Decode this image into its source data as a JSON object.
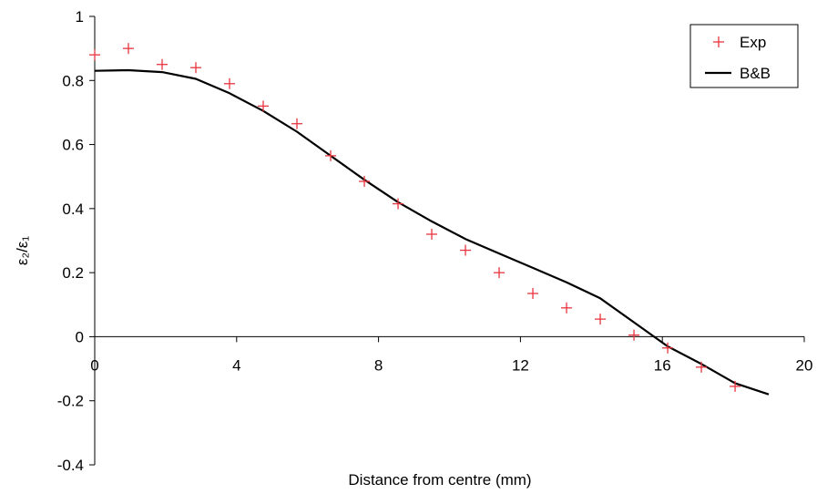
{
  "chart_data": {
    "type": "scatter",
    "title": "",
    "xlabel": "Distance from centre (mm)",
    "ylabel": "ε₂/ε₁",
    "xlim": [
      0,
      20
    ],
    "ylim": [
      -0.4,
      1
    ],
    "x_ticks": [
      0,
      4,
      8,
      12,
      16,
      20
    ],
    "y_ticks": [
      -0.4,
      -0.2,
      0,
      0.2,
      0.4,
      0.6,
      0.8,
      1
    ],
    "x_tick_labels": [
      "0",
      "4",
      "8",
      "12",
      "16",
      "20"
    ],
    "y_tick_labels": [
      "-0.4",
      "-0.2",
      "0",
      "0.2",
      "0.4",
      "0.6",
      "0.8",
      "1"
    ],
    "grid": false,
    "legend_position": "top-right",
    "series": [
      {
        "name": "Exp",
        "kind": "scatter",
        "marker": "plus",
        "color": "#e8343f",
        "x": [
          0,
          0.95,
          1.9,
          2.85,
          3.8,
          4.75,
          5.7,
          6.65,
          7.6,
          8.55,
          9.5,
          10.45,
          11.4,
          12.35,
          13.3,
          14.25,
          15.2,
          16.15,
          17.1,
          18.05
        ],
        "y": [
          0.88,
          0.9,
          0.85,
          0.84,
          0.79,
          0.72,
          0.665,
          0.565,
          0.485,
          0.415,
          0.32,
          0.27,
          0.2,
          0.135,
          0.09,
          0.055,
          0.005,
          -0.035,
          -0.095,
          -0.155
        ]
      },
      {
        "name": "B&B",
        "kind": "line",
        "color": "#000000",
        "x": [
          0,
          0.95,
          1.9,
          2.85,
          3.8,
          4.75,
          5.7,
          6.65,
          7.6,
          8.55,
          9.5,
          10.45,
          11.4,
          12.35,
          13.3,
          14.25,
          15.2,
          16.15,
          17.1,
          18.05,
          19.0
        ],
        "y": [
          0.83,
          0.832,
          0.826,
          0.805,
          0.76,
          0.705,
          0.64,
          0.565,
          0.49,
          0.42,
          0.36,
          0.305,
          0.26,
          0.215,
          0.17,
          0.12,
          0.045,
          -0.03,
          -0.085,
          -0.145,
          -0.18
        ]
      }
    ]
  }
}
